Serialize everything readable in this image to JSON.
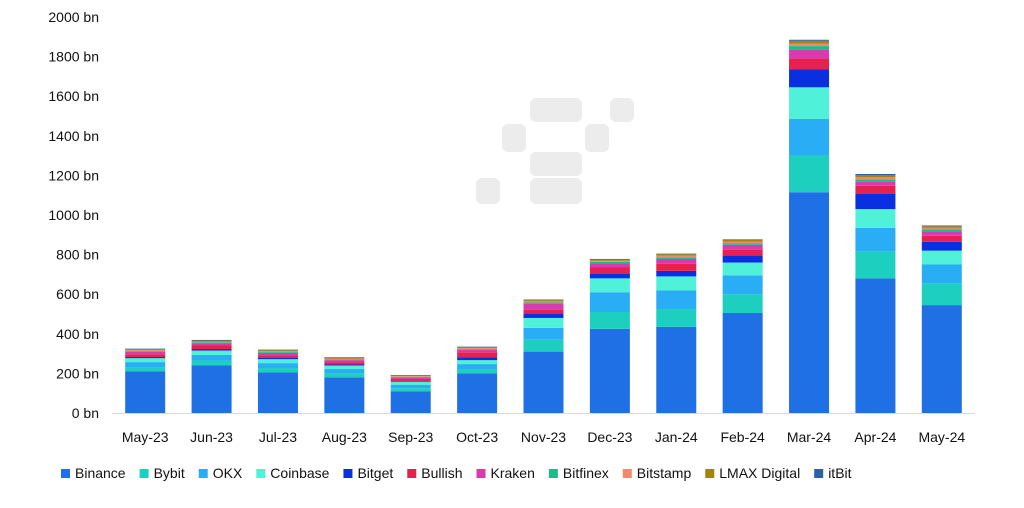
{
  "chart_data": {
    "type": "bar",
    "stacked": true,
    "categories": [
      "May-23",
      "Jun-23",
      "Jul-23",
      "Aug-23",
      "Sep-23",
      "Oct-23",
      "Nov-23",
      "Dec-23",
      "Jan-24",
      "Feb-24",
      "Mar-24",
      "Apr-24",
      "May-24"
    ],
    "ylim": [
      0,
      2000
    ],
    "yticks": [
      0,
      200,
      400,
      600,
      800,
      1000,
      1200,
      1400,
      1600,
      1800,
      2000
    ],
    "ytick_labels": [
      "0 bn",
      "200 bn",
      "400 bn",
      "600 bn",
      "800 bn",
      "1000 bn",
      "1200 bn",
      "1400 bn",
      "1600 bn",
      "1800 bn",
      "2000 bn"
    ],
    "legend_position": "bottom",
    "grid": false,
    "series": [
      {
        "name": "Binance",
        "color": "#1f6fe5",
        "values": [
          210,
          240,
          205,
          180,
          110,
          200,
          310,
          425,
          435,
          505,
          1115,
          680,
          545
        ]
      },
      {
        "name": "Bybit",
        "color": "#1ccfbf",
        "values": [
          22,
          25,
          22,
          20,
          15,
          22,
          60,
          85,
          90,
          95,
          185,
          135,
          110
        ]
      },
      {
        "name": "OKX",
        "color": "#29aef5",
        "values": [
          25,
          28,
          25,
          22,
          18,
          25,
          60,
          100,
          95,
          95,
          185,
          120,
          95
        ]
      },
      {
        "name": "Coinbase",
        "color": "#4ff2d8",
        "values": [
          20,
          22,
          20,
          18,
          15,
          20,
          50,
          70,
          70,
          65,
          160,
          95,
          70
        ]
      },
      {
        "name": "Bitget",
        "color": "#0a2fe0",
        "values": [
          6,
          8,
          6,
          5,
          4,
          15,
          22,
          22,
          28,
          35,
          90,
          78,
          45
        ]
      },
      {
        "name": "Bullish",
        "color": "#e8204e",
        "values": [
          14,
          18,
          14,
          12,
          10,
          25,
          20,
          35,
          35,
          30,
          55,
          40,
          30
        ]
      },
      {
        "name": "Kraken",
        "color": "#d63bb0",
        "values": [
          12,
          12,
          12,
          10,
          8,
          12,
          30,
          20,
          25,
          25,
          45,
          22,
          22
        ]
      },
      {
        "name": "Bitfinex",
        "color": "#14c083",
        "values": [
          4,
          4,
          4,
          4,
          3,
          4,
          6,
          6,
          8,
          8,
          18,
          10,
          10
        ]
      },
      {
        "name": "Bitstamp",
        "color": "#f28a6a",
        "values": [
          4,
          4,
          4,
          4,
          3,
          4,
          6,
          6,
          8,
          8,
          12,
          10,
          8
        ]
      },
      {
        "name": "LMAX Digital",
        "color": "#a58310",
        "values": [
          5,
          5,
          5,
          4,
          4,
          5,
          6,
          6,
          8,
          8,
          15,
          12,
          8
        ]
      },
      {
        "name": "itBit",
        "color": "#2b5fa6",
        "values": [
          3,
          3,
          3,
          3,
          2,
          3,
          3,
          3,
          3,
          3,
          5,
          5,
          4
        ]
      }
    ]
  }
}
